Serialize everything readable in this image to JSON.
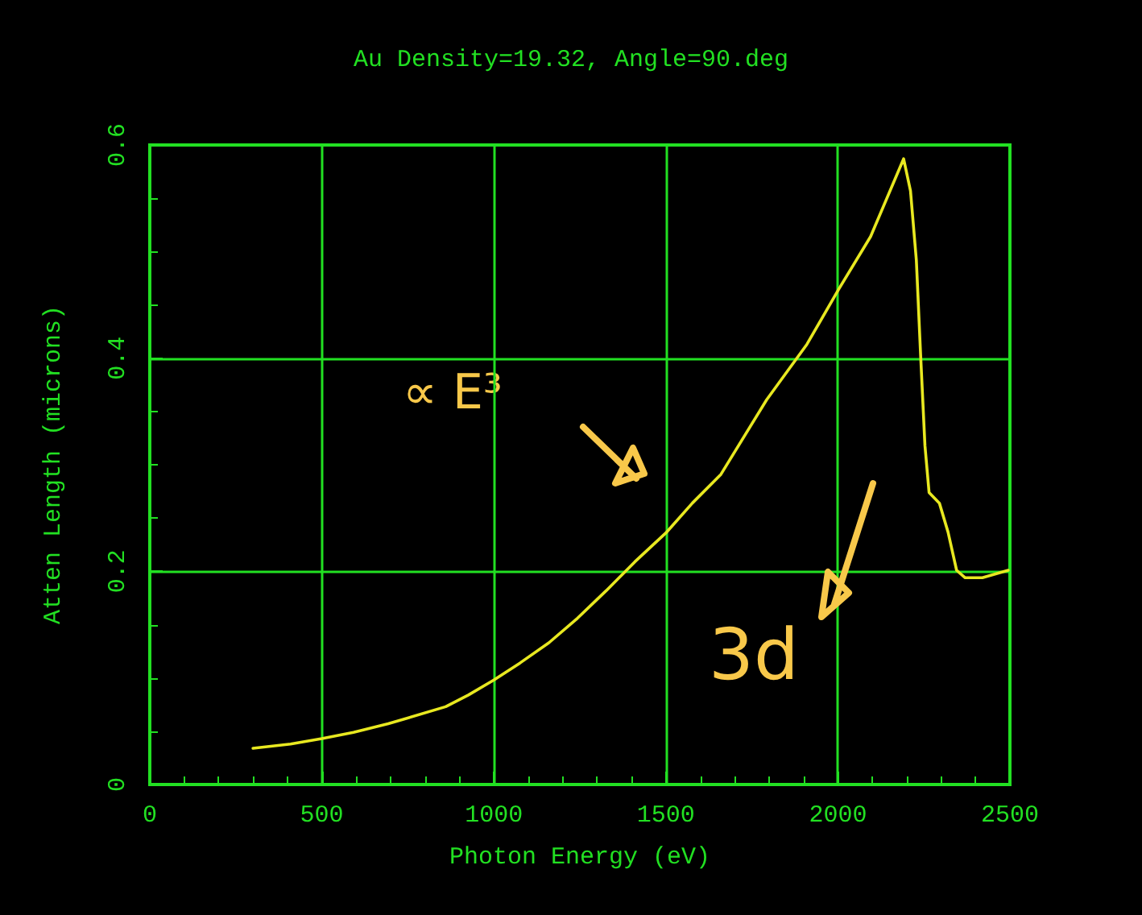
{
  "chart_data": {
    "type": "line",
    "title": "Au Density=19.32, Angle=90.deg",
    "xlabel": "Photon Energy (eV)",
    "ylabel": "Atten Length (microns)",
    "annotations": [
      "∝ E³",
      "3d"
    ],
    "xlim": [
      0,
      2500
    ],
    "xticks": [
      0,
      500,
      1000,
      1500,
      2000,
      2500
    ],
    "ylim": [
      0,
      0.6
    ],
    "yticks": [
      0,
      0.2,
      0.4,
      0.6
    ],
    "grid": true,
    "marker": "none",
    "line_style": "solid",
    "series": [
      {
        "color": "#e8e820",
        "x": [
          300,
          409,
          500,
          592,
          693,
          860,
          926,
          1000,
          1076,
          1160,
          1243,
          1327,
          1410,
          1500,
          1577,
          1660,
          1793,
          1910,
          2003,
          2095,
          2191,
          2211,
          2228,
          2241,
          2253,
          2265,
          2295,
          2320,
          2345,
          2370,
          2420,
          2495
        ],
        "values": [
          0.034,
          0.038,
          0.043,
          0.049,
          0.057,
          0.073,
          0.084,
          0.098,
          0.114,
          0.133,
          0.156,
          0.182,
          0.209,
          0.236,
          0.264,
          0.291,
          0.361,
          0.413,
          0.465,
          0.514,
          0.587,
          0.557,
          0.492,
          0.399,
          0.318,
          0.274,
          0.264,
          0.237,
          0.201,
          0.194,
          0.194,
          0.201
        ]
      }
    ]
  }
}
